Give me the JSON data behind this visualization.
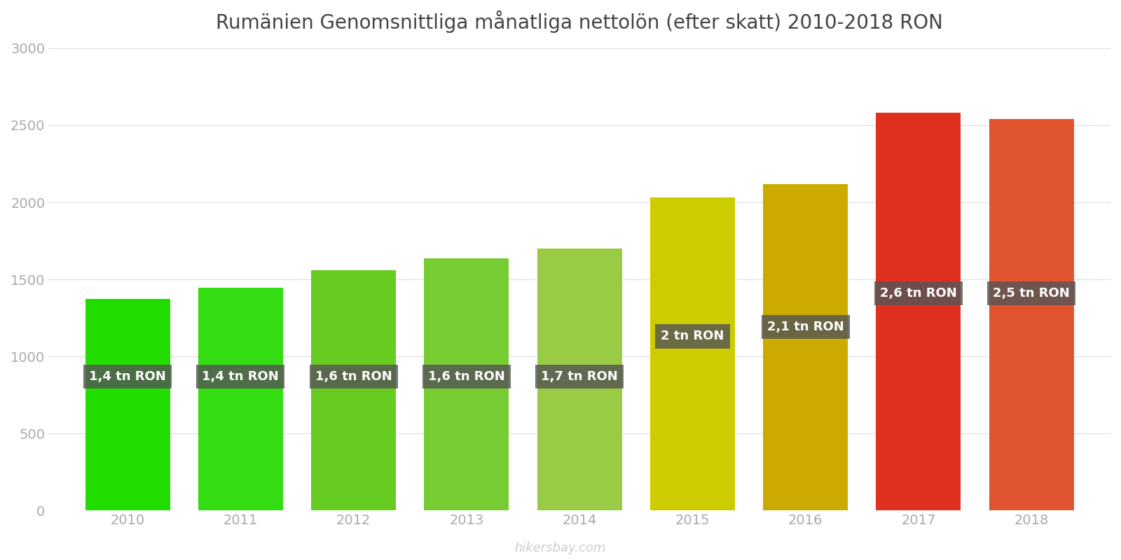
{
  "title": "Rumänien Genomsnittliga månatliga nettolön (efter skatt) 2010-2018 RON",
  "years": [
    2010,
    2011,
    2012,
    2013,
    2014,
    2015,
    2016,
    2017,
    2018
  ],
  "values": [
    1375,
    1445,
    1558,
    1638,
    1700,
    2033,
    2120,
    2580,
    2540
  ],
  "bar_colors": [
    "#22dd00",
    "#33dd11",
    "#66cc22",
    "#77cc33",
    "#99cc44",
    "#cccc00",
    "#ccaa00",
    "#e03020",
    "#e05530"
  ],
  "labels": [
    "1,4 tn RON",
    "1,4 tn RON",
    "1,6 tn RON",
    "1,6 tn RON",
    "1,7 tn RON",
    "2 tn RON",
    "2,1 tn RON",
    "2,6 tn RON",
    "2,5 tn RON"
  ],
  "label_y_positions": [
    870,
    870,
    870,
    870,
    870,
    1130,
    1190,
    1410,
    1410
  ],
  "ylim": [
    0,
    3000
  ],
  "yticks": [
    0,
    500,
    1000,
    1500,
    2000,
    2500,
    3000
  ],
  "background_color": "#ffffff",
  "grid_color": "#dddddd",
  "label_box_color": "#555555",
  "label_text_color": "#ffffff",
  "watermark": "hikersbay.com",
  "title_fontsize": 20,
  "tick_fontsize": 14,
  "label_fontsize": 13,
  "bar_width": 0.75
}
